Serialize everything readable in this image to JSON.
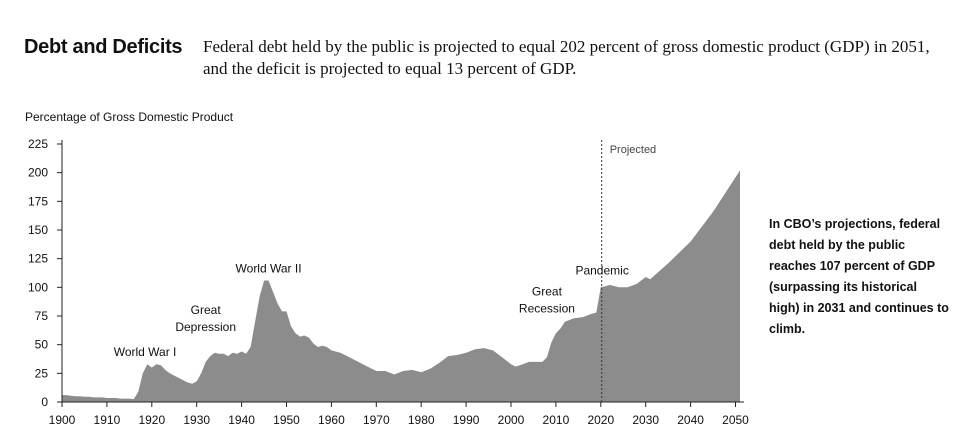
{
  "header": {
    "title": "Debt and Deficits",
    "summary": "Federal debt held by the public is projected to equal 202 percent of gross domestic product (GDP) in 2051, and the deficit is projected to equal 13 percent of GDP."
  },
  "side_note": "In CBO’s projections, federal debt held by the public reaches 107 percent of GDP (surpassing its historical high) in 2031 and continues to climb.",
  "colors": {
    "area": "#8c8c8c",
    "text": "#111111"
  },
  "chart_data": {
    "type": "area",
    "title": "",
    "ylabel": "Percentage of Gross Domestic Product",
    "xlabel": "",
    "xlim": [
      1900,
      2051
    ],
    "ylim": [
      0,
      225
    ],
    "x_ticks": [
      1900,
      1910,
      1920,
      1930,
      1940,
      1950,
      1960,
      1970,
      1980,
      1990,
      2000,
      2010,
      2020,
      2030,
      2040,
      2050
    ],
    "y_ticks": [
      0,
      25,
      50,
      75,
      100,
      125,
      150,
      175,
      200,
      225
    ],
    "grid": false,
    "projection_start": 2020.2,
    "projection_label": "Projected",
    "annotations": [
      {
        "lines": [
          "World War I"
        ],
        "x": 1918.5,
        "y": 40
      },
      {
        "lines": [
          "Great",
          "Depression"
        ],
        "x": 1932,
        "y": 62
      },
      {
        "lines": [
          "World War II"
        ],
        "x": 1946,
        "y": 113
      },
      {
        "lines": [
          "Great",
          "Recession"
        ],
        "x": 2008,
        "y": 78
      },
      {
        "lines": [
          "Pandemic"
        ],
        "x": 2020.3,
        "y": 111
      }
    ],
    "series": [
      {
        "x": [
          1900,
          1901,
          1902,
          1903,
          1904,
          1905,
          1906,
          1907,
          1908,
          1909,
          1910,
          1911,
          1912,
          1913,
          1914,
          1915,
          1916,
          1917,
          1918,
          1919,
          1920,
          1921,
          1922,
          1923,
          1924,
          1925,
          1926,
          1927,
          1928,
          1929,
          1930,
          1931,
          1932,
          1933,
          1934,
          1935,
          1936,
          1937,
          1938,
          1939,
          1940,
          1941,
          1942,
          1943,
          1944,
          1945,
          1946,
          1947,
          1948,
          1949,
          1950,
          1951,
          1952,
          1953,
          1954,
          1955,
          1956,
          1957,
          1958,
          1959,
          1960,
          1962,
          1964,
          1966,
          1968,
          1970,
          1972,
          1974,
          1976,
          1978,
          1980,
          1982,
          1984,
          1986,
          1988,
          1990,
          1992,
          1994,
          1996,
          1998,
          2000,
          2001,
          2002,
          2004,
          2006,
          2007,
          2008,
          2009,
          2010,
          2011,
          2012,
          2014,
          2016,
          2018,
          2019,
          2020,
          2021,
          2022,
          2024,
          2026,
          2028,
          2030,
          2031,
          2035,
          2040,
          2045,
          2051
        ],
        "values": [
          6,
          6,
          5.5,
          5,
          5,
          4.5,
          4.5,
          4,
          4,
          4,
          3.5,
          3.5,
          3.5,
          3,
          3,
          3,
          2.5,
          9,
          25,
          33,
          30,
          33,
          32,
          28,
          25,
          23,
          21,
          19,
          17,
          16,
          18,
          25,
          35,
          40,
          43,
          42,
          42,
          40,
          43,
          42,
          44,
          42,
          48,
          70,
          92,
          106,
          106,
          96,
          86,
          79,
          79,
          66,
          60,
          57,
          58,
          56,
          51,
          48,
          49,
          48,
          45,
          43,
          39,
          35,
          31,
          27,
          27,
          24,
          27,
          28,
          26,
          29,
          34,
          40,
          41,
          43,
          46,
          47,
          45,
          39,
          33,
          31,
          32,
          35,
          35,
          35,
          39,
          52,
          60,
          64,
          70,
          73,
          74,
          77,
          78,
          100,
          101,
          102,
          100,
          100,
          103,
          109,
          107,
          121,
          140,
          166,
          202
        ]
      }
    ]
  }
}
